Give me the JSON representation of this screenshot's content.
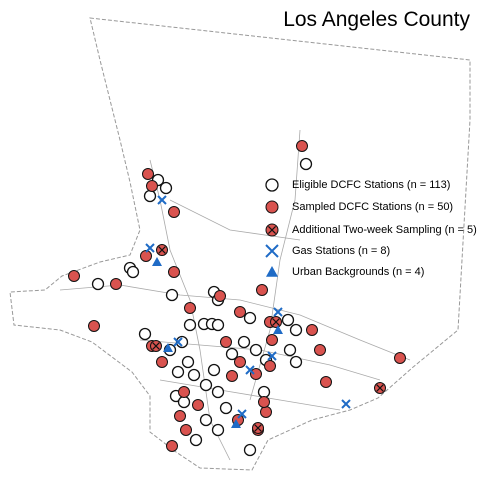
{
  "title": "Los Angeles County",
  "legend": [
    {
      "label": "Eligible DCFC Stations (n = 113)"
    },
    {
      "label": "Sampled DCFC Stations (n = 50)"
    },
    {
      "label": "Additional Two-week Sampling (n = 5)"
    },
    {
      "label": "Gas Stations (n = 8)"
    },
    {
      "label": "Urban Backgrounds (n = 4)"
    }
  ]
}
